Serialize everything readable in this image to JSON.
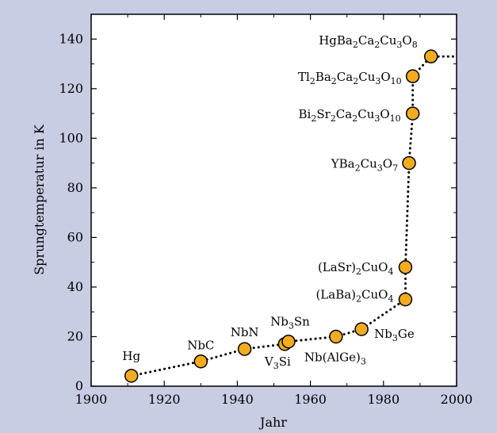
{
  "colors": {
    "background": "#c8cde4",
    "plot_area": "#ffffff",
    "marker_fill": "#f3ac1f",
    "marker_stroke": "#000000",
    "line": "#000000"
  },
  "chart_data": {
    "type": "scatter",
    "title": "",
    "xlabel": "Jahr",
    "ylabel": "Sprungtemperatur in K",
    "xlim": [
      1900,
      2000
    ],
    "ylim": [
      0,
      150
    ],
    "x_ticks": [
      1900,
      1920,
      1940,
      1960,
      1980,
      2000
    ],
    "y_ticks": [
      0,
      20,
      40,
      60,
      80,
      100,
      120,
      140
    ],
    "grid": false,
    "legend": "none",
    "connector": "dotted",
    "points": [
      {
        "x": 1911,
        "y": 4.2,
        "label": "Hg",
        "label_html": "Hg"
      },
      {
        "x": 1930,
        "y": 10,
        "label": "NbC",
        "label_html": "NbC"
      },
      {
        "x": 1942,
        "y": 15,
        "label": "NbN",
        "label_html": "NbN"
      },
      {
        "x": 1953,
        "y": 17,
        "label": "V3Si",
        "label_html": "V<sub>3</sub>Si"
      },
      {
        "x": 1954,
        "y": 18,
        "label": "Nb3Sn",
        "label_html": "Nb<sub>3</sub>Sn"
      },
      {
        "x": 1967,
        "y": 20,
        "label": "Nb(AlGe)3",
        "label_html": "Nb(AlGe)<sub>3</sub>"
      },
      {
        "x": 1974,
        "y": 23,
        "label": "Nb3Ge",
        "label_html": "Nb<sub>3</sub>Ge"
      },
      {
        "x": 1986,
        "y": 35,
        "label": "(LaBa)2CuO4",
        "label_html": "(LaBa)<sub>2</sub>CuO<sub>4</sub>"
      },
      {
        "x": 1986,
        "y": 48,
        "label": "(LaSr)2CuO4",
        "label_html": "(LaSr)<sub>2</sub>CuO<sub>4</sub>"
      },
      {
        "x": 1987,
        "y": 90,
        "label": "YBa2Cu3O7",
        "label_html": "YBa<sub>2</sub>Cu<sub>3</sub>O<sub>7</sub>"
      },
      {
        "x": 1988,
        "y": 110,
        "label": "Bi2Sr2Ca2Cu3O10",
        "label_html": "Bi<sub>2</sub>Sr<sub>2</sub>Ca<sub>2</sub>Cu<sub>3</sub>O<sub>10</sub>"
      },
      {
        "x": 1988,
        "y": 125,
        "label": "Tl2Ba2Ca2Cu3O10",
        "label_html": "Tl<sub>2</sub>Ba<sub>2</sub>Ca<sub>2</sub>Cu<sub>3</sub>O<sub>10</sub>"
      },
      {
        "x": 1993,
        "y": 133,
        "label": "HgBa2Ca2Cu3O8",
        "label_html": "HgBa<sub>2</sub>Ca<sub>2</sub>Cu<sub>3</sub>O<sub>8</sub>"
      }
    ],
    "line_extends_to_x": 2000
  }
}
